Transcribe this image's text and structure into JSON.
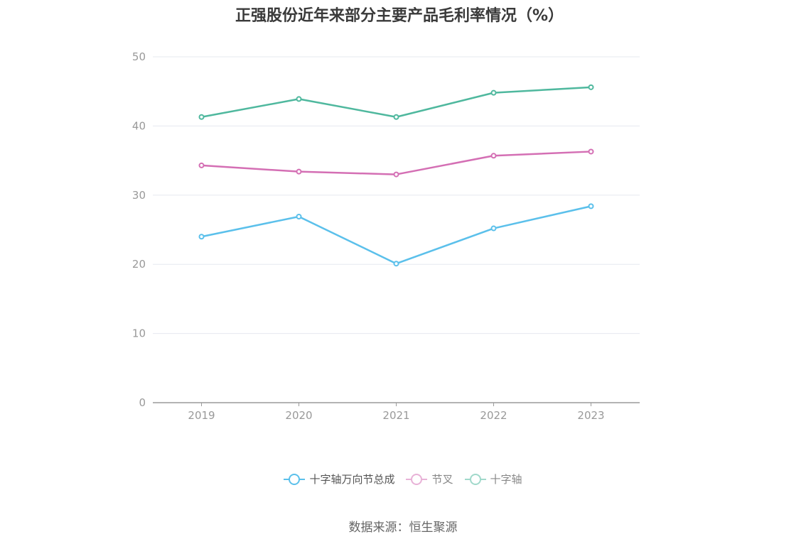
{
  "title": "正强股份近年来部分主要产品毛利率情况（%）",
  "source": "数据来源：恒生聚源",
  "chart_data": {
    "type": "line",
    "title": "正强股份近年来部分主要产品毛利率情况（%）",
    "categories": [
      "2019",
      "2020",
      "2021",
      "2022",
      "2023"
    ],
    "ylim": [
      0,
      50
    ],
    "yticks": [
      0,
      10,
      20,
      30,
      40,
      50
    ],
    "grid": true,
    "legend_position": "bottom",
    "series": [
      {
        "name": "十字轴万向节总成",
        "values": [
          24.0,
          26.9,
          20.1,
          25.2,
          28.4
        ],
        "color": "#5bc0eb",
        "legend_faded": false
      },
      {
        "name": "节叉",
        "values": [
          34.3,
          33.4,
          33.0,
          35.7,
          36.3
        ],
        "color": "#d46fb4",
        "legend_faded": true
      },
      {
        "name": "十字轴",
        "values": [
          41.3,
          43.9,
          41.3,
          44.8,
          45.6
        ],
        "color": "#4fb89e",
        "legend_faded": true
      }
    ]
  }
}
